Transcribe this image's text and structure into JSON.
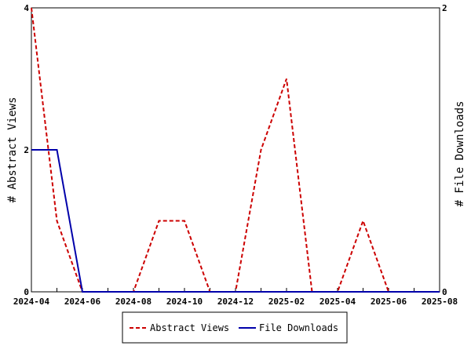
{
  "chart_data": {
    "type": "line",
    "x": [
      "2024-04",
      "2024-05",
      "2024-06",
      "2024-07",
      "2024-08",
      "2024-09",
      "2024-10",
      "2024-11",
      "2024-12",
      "2025-01",
      "2025-02",
      "2025-03",
      "2025-04",
      "2025-05",
      "2025-06",
      "2025-07",
      "2025-08"
    ],
    "x_tick_labels": [
      "2024-04",
      "2024-06",
      "2024-08",
      "2024-10",
      "2024-12",
      "2025-02",
      "2025-04",
      "2025-06",
      "2025-08"
    ],
    "series": [
      {
        "name": "Abstract Views",
        "axis": "left",
        "color": "#cc0000",
        "style": "dashed",
        "values": [
          4,
          1,
          0,
          0,
          0,
          1,
          1,
          0,
          0,
          2,
          3,
          0,
          0,
          1,
          0,
          0,
          0
        ]
      },
      {
        "name": "File Downloads",
        "axis": "right",
        "color": "#0000aa",
        "style": "solid",
        "values": [
          1,
          1,
          0,
          0,
          0,
          0,
          0,
          0,
          0,
          0,
          0,
          0,
          0,
          0,
          0,
          0,
          0
        ]
      }
    ],
    "ylabel": "# Abstract Views",
    "y2label": "# File Downloads",
    "ylim": [
      0,
      4
    ],
    "y2lim": [
      0,
      2
    ],
    "yticks": [
      0,
      2,
      4
    ],
    "y2ticks": [
      0,
      2
    ],
    "legend_position": "bottom",
    "grid": false
  }
}
